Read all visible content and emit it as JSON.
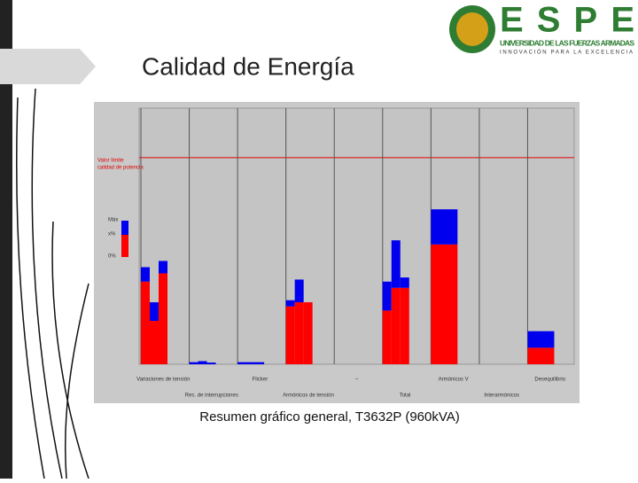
{
  "header": {
    "title": "Calidad de Energía"
  },
  "logo": {
    "name": "ESPE",
    "line1": "UNIVERSIDAD DE LAS FUERZAS ARMADAS",
    "line2": "INNOVACIÓN PARA LA EXCELENCIA"
  },
  "caption": "Resumen gráfico general, T3632P (960kVA)",
  "chart_data": {
    "type": "bar",
    "stacked": true,
    "ylim": [
      0,
      124
    ],
    "limit": {
      "value": 100,
      "color": "#e00000",
      "label": [
        "Valor límite",
        "calidad de potencia"
      ]
    },
    "legend": [
      "Máx",
      "x%",
      "0%"
    ],
    "series": [
      {
        "color": "#ff0000"
      },
      {
        "color": "#0000ee"
      }
    ],
    "groups": [
      {
        "label": "Variaciones de tensión",
        "values": [
          [
            40,
            7
          ],
          [
            21,
            9
          ],
          [
            44,
            6
          ]
        ]
      },
      {
        "label": "Rec. de interrupciones",
        "values": [
          [
            0,
            1
          ],
          [
            0,
            1.5
          ],
          [
            0,
            0.8
          ]
        ]
      },
      {
        "label": "Flicker",
        "values": [
          [
            0,
            1
          ]
        ]
      },
      {
        "label": "Armónicos de tensión",
        "values": [
          [
            28,
            3
          ],
          [
            30,
            11
          ],
          [
            30,
            0
          ]
        ]
      },
      {
        "label": "–",
        "values": []
      },
      {
        "label": "Total",
        "values": [
          [
            26,
            14
          ],
          [
            37,
            23
          ],
          [
            37,
            5
          ]
        ]
      },
      {
        "label": "Armónicos V",
        "values": [
          [
            58,
            17
          ]
        ]
      },
      {
        "label": "Interarmónicos",
        "values": []
      },
      {
        "label": "Desequilibrio",
        "values": [
          [
            8,
            8
          ]
        ]
      }
    ]
  }
}
